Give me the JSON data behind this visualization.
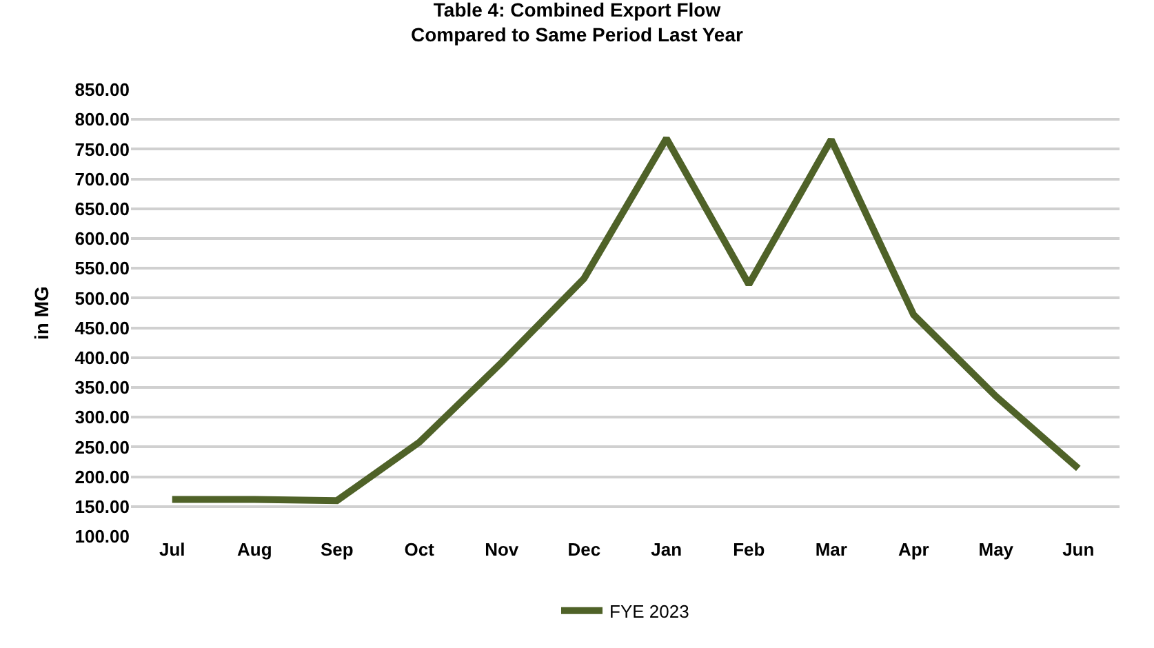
{
  "chart_data": {
    "type": "line",
    "title": "Table 4: Combined Export Flow\nCompared to Same Period Last Year",
    "ylabel": "in MG",
    "categories": [
      "Jul",
      "Aug",
      "Sep",
      "Oct",
      "Nov",
      "Dec",
      "Jan",
      "Feb",
      "Mar",
      "Apr",
      "May",
      "Jun"
    ],
    "series": [
      {
        "name": "FYE 2023",
        "color": "#4f6228",
        "values": [
          162,
          162,
          160,
          258,
          392,
          533,
          768,
          523,
          766,
          472,
          335,
          214
        ]
      }
    ],
    "ylim": [
      100,
      850
    ],
    "yticks": [
      {
        "value": 100,
        "label": "100.00"
      },
      {
        "value": 150,
        "label": "150.00"
      },
      {
        "value": 200,
        "label": "200.00"
      },
      {
        "value": 250,
        "label": "250.00"
      },
      {
        "value": 300,
        "label": "300.00"
      },
      {
        "value": 350,
        "label": "350.00"
      },
      {
        "value": 400,
        "label": "400.00"
      },
      {
        "value": 450,
        "label": "450.00"
      },
      {
        "value": 500,
        "label": "500.00"
      },
      {
        "value": 550,
        "label": "550.00"
      },
      {
        "value": 600,
        "label": "600.00"
      },
      {
        "value": 650,
        "label": "650.00"
      },
      {
        "value": 700,
        "label": "700.00"
      },
      {
        "value": 750,
        "label": "750.00"
      },
      {
        "value": 800,
        "label": "800.00"
      },
      {
        "value": 850,
        "label": "850.00"
      }
    ],
    "grid": "y",
    "legend": "bottom",
    "marker": "none",
    "line_style": "solid"
  }
}
